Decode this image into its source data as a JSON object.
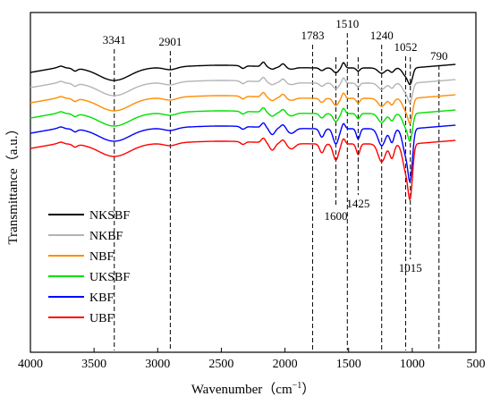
{
  "chart_data": {
    "type": "line",
    "xlabel": "Wavenumber（cm",
    "xlabel_sup": "−1",
    "xlabel_close": "）",
    "ylabel": "Transmittance（a.u.）",
    "xlim": [
      4000,
      500
    ],
    "x_reversed": true,
    "x_ticks": [
      4000,
      3500,
      3000,
      2500,
      2000,
      1500,
      1000,
      500
    ],
    "y_ticks": [],
    "grid": false,
    "legend_position": "bottom-left",
    "peaks": [
      {
        "x": 3341,
        "label": "3341",
        "label_pos": "top"
      },
      {
        "x": 2901,
        "label": "2901",
        "label_pos": "top"
      },
      {
        "x": 1783,
        "label": "1783",
        "label_pos": "top"
      },
      {
        "x": 1600,
        "label": "1600",
        "label_pos": "bottom"
      },
      {
        "x": 1510,
        "label": "1510",
        "label_pos": "top"
      },
      {
        "x": 1425,
        "label": "1425",
        "label_pos": "bottom"
      },
      {
        "x": 1240,
        "label": "1240",
        "label_pos": "top"
      },
      {
        "x": 1052,
        "label": "1052",
        "label_pos": "top"
      },
      {
        "x": 1015,
        "label": "1015",
        "label_pos": "bottom"
      },
      {
        "x": 790,
        "label": "790",
        "label_pos": "top"
      }
    ],
    "series": [
      {
        "name": "NKSBF",
        "color": "#000000",
        "offset": 0,
        "depth": 0.6
      },
      {
        "name": "NKBF",
        "color": "#b4b4b4",
        "offset": 1,
        "depth": 0.7
      },
      {
        "name": "NBF",
        "color": "#ff8c00",
        "offset": 2,
        "depth": 0.9
      },
      {
        "name": "UKSBF",
        "color": "#00e000",
        "offset": 3,
        "depth": 1.0
      },
      {
        "name": "KBF",
        "color": "#0000ff",
        "offset": 4,
        "depth": 1.9
      },
      {
        "name": "UBF",
        "color": "#ff0000",
        "offset": 5,
        "depth": 2.0
      }
    ]
  }
}
